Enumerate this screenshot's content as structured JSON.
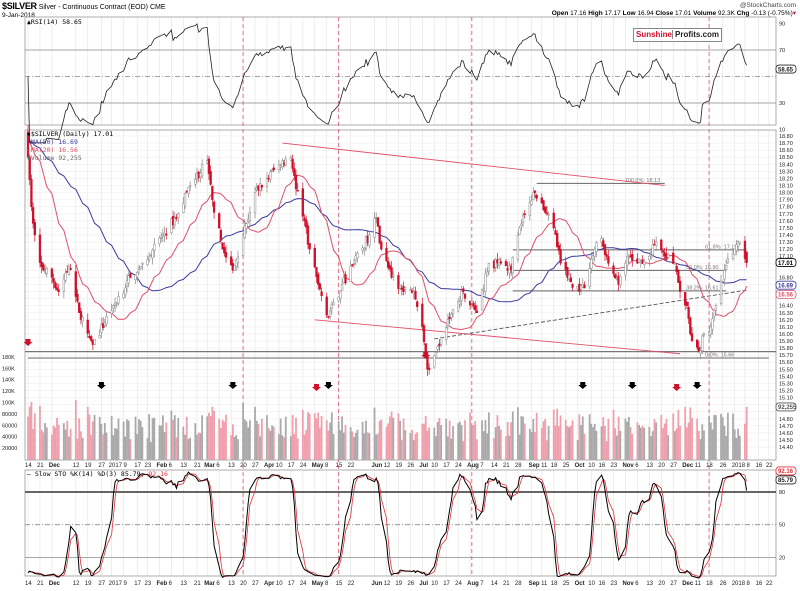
{
  "header": {
    "symbol": "$SILVER",
    "description": "Silver - Continuous Contract (EOD) CME",
    "date": "9-Jan-2018",
    "watermark": "@StockCharts.com",
    "quote": {
      "open_label": "Open",
      "open": "17.16",
      "high_label": "High",
      "high": "17.17",
      "low_label": "Low",
      "low": "16.94",
      "close_label": "Close",
      "close": "17.01",
      "volume_label": "Volume",
      "volume": "92.3K",
      "chg_label": "Chg",
      "chg": "-0.13 (-0.75%)"
    }
  },
  "logo": {
    "part1": "Sunshine",
    "part2": "Profits.com"
  },
  "colors": {
    "up": "#888888",
    "down": "#d0102a",
    "ma50": "#3a3aa0",
    "ma20": "#e0506a",
    "volume_up": "#aaaaaa",
    "volume_down": "#f0a0ac",
    "annotation": "#e0506a",
    "stoch_k": "#000000",
    "stoch_d": "#e0303a"
  },
  "legends": {
    "rsi": "RSI(14) 58.65",
    "price": "$SILVER (Daily) 17.01",
    "ma50": "MA(50) 16.69",
    "ma20": "MA(20) 16.56",
    "volume": "Volume 92,255",
    "stoch_prefix": "Slow STO %K(14) %D(3) 85.79,",
    "stoch_d": "92.16"
  },
  "chart_data": [
    {
      "type": "line",
      "panel": "rsi",
      "title": "RSI(14) 58.65",
      "ylim": [
        0,
        100
      ],
      "yticks": [
        10,
        30,
        50,
        70,
        90
      ],
      "reference_lines": [
        30,
        50,
        70
      ],
      "current_value": "58.65"
    },
    {
      "type": "candlestick",
      "panel": "price",
      "title": "$SILVER (Daily) 17.01",
      "ylim": [
        14.4,
        18.8
      ],
      "ytick_step": 0.1,
      "xrange": [
        "2016-11-14",
        "2018-01-22"
      ],
      "close_keypoints": [
        [
          "2016-11-14",
          18.5
        ],
        [
          "2016-11-16",
          17.8
        ],
        [
          "2016-11-18",
          17.4
        ],
        [
          "2016-11-22",
          16.95
        ],
        [
          "2016-11-28",
          16.8
        ],
        [
          "2016-12-02",
          16.6
        ],
        [
          "2016-12-08",
          16.95
        ],
        [
          "2016-12-14",
          16.3
        ],
        [
          "2016-12-20",
          15.95
        ],
        [
          "2016-12-22",
          15.85
        ],
        [
          "2017-01-03",
          16.4
        ],
        [
          "2017-01-13",
          16.8
        ],
        [
          "2017-01-20",
          17.0
        ],
        [
          "2017-02-01",
          17.4
        ],
        [
          "2017-02-10",
          17.7
        ],
        [
          "2017-02-17",
          18.1
        ],
        [
          "2017-02-27",
          18.45
        ],
        [
          "2017-03-02",
          17.9
        ],
        [
          "2017-03-08",
          17.2
        ],
        [
          "2017-03-14",
          16.9
        ],
        [
          "2017-03-20",
          17.4
        ],
        [
          "2017-03-27",
          18.0
        ],
        [
          "2017-04-03",
          18.2
        ],
        [
          "2017-04-10",
          18.4
        ],
        [
          "2017-04-17",
          18.5
        ],
        [
          "2017-04-20",
          18.05
        ],
        [
          "2017-04-25",
          17.6
        ],
        [
          "2017-04-28",
          17.2
        ],
        [
          "2017-05-03",
          16.7
        ],
        [
          "2017-05-09",
          16.25
        ],
        [
          "2017-05-17",
          16.7
        ],
        [
          "2017-05-24",
          17.0
        ],
        [
          "2017-06-02",
          17.4
        ],
        [
          "2017-06-06",
          17.65
        ],
        [
          "2017-06-09",
          17.2
        ],
        [
          "2017-06-15",
          16.8
        ],
        [
          "2017-06-22",
          16.6
        ],
        [
          "2017-06-28",
          16.6
        ],
        [
          "2017-07-03",
          16.1
        ],
        [
          "2017-07-06",
          15.5
        ],
        [
          "2017-07-10",
          15.7
        ],
        [
          "2017-07-14",
          15.95
        ],
        [
          "2017-07-21",
          16.35
        ],
        [
          "2017-07-27",
          16.6
        ],
        [
          "2017-08-04",
          16.3
        ],
        [
          "2017-08-11",
          17.0
        ],
        [
          "2017-08-18",
          17.0
        ],
        [
          "2017-08-24",
          16.9
        ],
        [
          "2017-08-29",
          17.5
        ],
        [
          "2017-09-01",
          17.7
        ],
        [
          "2017-09-07",
          18.0
        ],
        [
          "2017-09-11",
          17.85
        ],
        [
          "2017-09-14",
          17.7
        ],
        [
          "2017-09-18",
          17.5
        ],
        [
          "2017-09-22",
          17.0
        ],
        [
          "2017-09-26",
          16.8
        ],
        [
          "2017-10-03",
          16.6
        ],
        [
          "2017-10-06",
          16.65
        ],
        [
          "2017-10-12",
          17.2
        ],
        [
          "2017-10-16",
          17.35
        ],
        [
          "2017-10-20",
          17.0
        ],
        [
          "2017-10-26",
          16.7
        ],
        [
          "2017-11-01",
          17.1
        ],
        [
          "2017-11-06",
          17.0
        ],
        [
          "2017-11-13",
          17.1
        ],
        [
          "2017-11-17",
          17.3
        ],
        [
          "2017-11-22",
          17.1
        ],
        [
          "2017-11-28",
          17.0
        ],
        [
          "2017-12-01",
          16.6
        ],
        [
          "2017-12-05",
          16.4
        ],
        [
          "2017-12-08",
          15.9
        ],
        [
          "2017-12-12",
          15.75
        ],
        [
          "2017-12-15",
          16.0
        ],
        [
          "2017-12-19",
          16.1
        ],
        [
          "2017-12-22",
          16.4
        ],
        [
          "2017-12-27",
          16.9
        ],
        [
          "2018-01-02",
          17.2
        ],
        [
          "2018-01-05",
          17.3
        ],
        [
          "2018-01-09",
          17.01
        ]
      ],
      "last": {
        "close": "17.01",
        "ma50": "16.69",
        "ma20": "16.56"
      },
      "fibonacci": [
        {
          "label": "100.0%: 18.13",
          "price": 18.13,
          "from": "2017-09-08",
          "to": "2017-11-22"
        },
        {
          "label": "61.8%: 17.19",
          "price": 17.19,
          "from": "2017-08-25",
          "to": "2018-01-09"
        },
        {
          "label": "50.0%: 16.90",
          "price": 16.9,
          "from": "2017-08-25",
          "to": "2017-12-28"
        },
        {
          "label": "38.2%: 16.61",
          "price": 16.61,
          "from": "2017-08-25",
          "to": "2017-12-28"
        },
        {
          "label": "0.0%: 15.66",
          "price": 15.66,
          "from": "2016-11-14",
          "to": "2018-01-22"
        }
      ],
      "support_line": 15.75,
      "trendlines": [
        {
          "from": [
            "2017-04-12",
            18.7
          ],
          "to": [
            "2017-11-22",
            18.1
          ],
          "style": "solid"
        },
        {
          "from": [
            "2017-05-01",
            16.2
          ],
          "to": [
            "2017-12-01",
            15.72
          ],
          "style": "solid"
        },
        {
          "from": [
            "2017-07-10",
            15.93
          ],
          "to": [
            "2018-01-09",
            16.62
          ],
          "style": "dashed"
        }
      ],
      "red_arrows": [
        "2016-11-14",
        "2017-07-05"
      ]
    },
    {
      "type": "bar",
      "panel": "volume",
      "title": "Volume 92,255",
      "ylim": [
        0,
        190000
      ],
      "yticks": [
        "20000",
        "40000",
        "60000",
        "80000",
        "100K",
        "120K",
        "140K",
        "160K",
        "180K"
      ],
      "ytick_values": [
        20000,
        40000,
        60000,
        80000,
        100000,
        120000,
        140000,
        160000,
        180000
      ],
      "last": "92,255",
      "black_arrows": [
        "2016-12-27",
        "2017-03-14",
        "2017-05-09",
        "2017-10-05",
        "2017-11-03",
        "2017-12-11"
      ],
      "red_arrows": [
        "2017-05-02",
        "2017-11-29"
      ]
    },
    {
      "type": "line",
      "panel": "stochastic",
      "title": "Slow STO %K(14) %D(3) 85.79, 92.16",
      "ylim": [
        0,
        100
      ],
      "yticks": [
        20,
        50,
        80
      ],
      "reference_lines": [
        20,
        50,
        80
      ],
      "current": {
        "k": "85.79",
        "d": "92.16"
      }
    }
  ],
  "xaxis_ticks": [
    [
      "2016-11-14",
      "14"
    ],
    [
      "2016-11-21",
      "21"
    ],
    [
      "2016-11-28",
      "Dec"
    ],
    [
      "2016-12-12",
      "12"
    ],
    [
      "2016-12-19",
      "19"
    ],
    [
      "2016-12-27",
      "27"
    ],
    [
      "2017-01-02",
      "2017"
    ],
    [
      "2017-01-09",
      "9"
    ],
    [
      "2017-01-17",
      "17"
    ],
    [
      "2017-01-23",
      "23"
    ],
    [
      "2017-01-30",
      "Feb"
    ],
    [
      "2017-02-06",
      "6"
    ],
    [
      "2017-02-13",
      "13"
    ],
    [
      "2017-02-21",
      "21"
    ],
    [
      "2017-02-27",
      "Mar"
    ],
    [
      "2017-03-06",
      "6"
    ],
    [
      "2017-03-13",
      "13"
    ],
    [
      "2017-03-20",
      "20"
    ],
    [
      "2017-03-27",
      "27"
    ],
    [
      "2017-04-03",
      "Apr"
    ],
    [
      "2017-04-10",
      "10"
    ],
    [
      "2017-04-17",
      "17"
    ],
    [
      "2017-04-24",
      "24"
    ],
    [
      "2017-05-01",
      "May"
    ],
    [
      "2017-05-08",
      "8"
    ],
    [
      "2017-05-15",
      "15"
    ],
    [
      "2017-05-22",
      "22"
    ],
    [
      "2017-06-05",
      "Jun"
    ],
    [
      "2017-06-12",
      "12"
    ],
    [
      "2017-06-19",
      "19"
    ],
    [
      "2017-06-26",
      "26"
    ],
    [
      "2017-07-03",
      "Jul"
    ],
    [
      "2017-07-10",
      "10"
    ],
    [
      "2017-07-17",
      "17"
    ],
    [
      "2017-07-24",
      "24"
    ],
    [
      "2017-07-31",
      "Aug"
    ],
    [
      "2017-08-07",
      "7"
    ],
    [
      "2017-08-14",
      "14"
    ],
    [
      "2017-08-21",
      "21"
    ],
    [
      "2017-08-28",
      "28"
    ],
    [
      "2017-09-05",
      "Sep"
    ],
    [
      "2017-09-11",
      "11"
    ],
    [
      "2017-09-18",
      "18"
    ],
    [
      "2017-09-25",
      "25"
    ],
    [
      "2017-10-02",
      "Oct"
    ],
    [
      "2017-10-10",
      "10"
    ],
    [
      "2017-10-16",
      "16"
    ],
    [
      "2017-10-23",
      "23"
    ],
    [
      "2017-10-30",
      "Nov"
    ],
    [
      "2017-11-06",
      "6"
    ],
    [
      "2017-11-13",
      "13"
    ],
    [
      "2017-11-20",
      "20"
    ],
    [
      "2017-11-27",
      "27"
    ],
    [
      "2017-12-04",
      "Dec"
    ],
    [
      "2017-12-11",
      "11"
    ],
    [
      "2017-12-18",
      "18"
    ],
    [
      "2017-12-26",
      "26"
    ],
    [
      "2018-01-02",
      "2018"
    ],
    [
      "2018-01-08",
      "8"
    ],
    [
      "2018-01-16",
      "16"
    ],
    [
      "2018-01-22",
      "22"
    ]
  ],
  "cycle_lines": [
    "2017-03-20",
    "2017-05-15",
    "2017-08-01",
    "2017-12-18"
  ]
}
